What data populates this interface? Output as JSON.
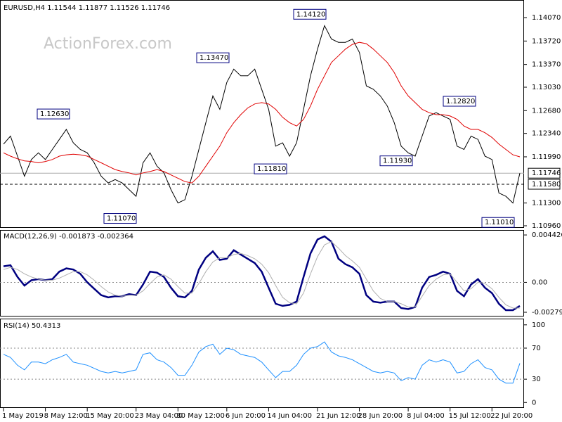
{
  "watermark": "ActionForex.com",
  "chart_data": [
    {
      "type": "line",
      "title": "EURUSD,H4  1.11544 1.11877 1.11526 1.11746",
      "x": [
        "1 May 2019",
        null,
        null,
        null,
        null,
        null,
        "8 May 12:00",
        null,
        null,
        null,
        null,
        null,
        "15 May 20:00",
        null,
        null,
        null,
        null,
        null,
        null,
        "23 May 04:00",
        null,
        null,
        null,
        null,
        null,
        "30 May 12:00",
        null,
        null,
        null,
        null,
        null,
        null,
        "6 Jun 20:00",
        null,
        null,
        null,
        null,
        null,
        "14 Jun 04:00",
        null,
        null,
        null,
        null,
        null,
        null,
        "21 Jun 12:00",
        null,
        null,
        null,
        null,
        null,
        "28 Jun 20:00",
        null,
        null,
        null,
        null,
        null,
        null,
        "8 Jul 04:00",
        null,
        null,
        null,
        null,
        null,
        "15 Jul 12:00",
        null,
        null,
        null,
        null,
        null,
        "22 Jul 20:00",
        null,
        null,
        null,
        null
      ],
      "series": [
        {
          "color": "#000000",
          "values": [
            1.1218,
            1.123,
            1.12,
            1.117,
            1.1195,
            1.1205,
            1.1195,
            1.121,
            1.1225,
            1.124,
            1.122,
            1.121,
            1.1205,
            1.119,
            1.117,
            1.116,
            1.1165,
            1.116,
            1.115,
            1.114,
            1.119,
            1.1205,
            1.1185,
            1.1175,
            1.115,
            1.113,
            1.1135,
            1.117,
            1.121,
            1.125,
            1.129,
            1.127,
            1.131,
            1.133,
            1.132,
            1.132,
            1.133,
            1.13,
            1.127,
            1.1215,
            1.122,
            1.12,
            1.122,
            1.127,
            1.132,
            1.136,
            1.1395,
            1.1375,
            1.137,
            1.137,
            1.1375,
            1.1355,
            1.1305,
            1.13,
            1.129,
            1.1275,
            1.125,
            1.1215,
            1.1205,
            1.12,
            1.123,
            1.126,
            1.1265,
            1.126,
            1.1255,
            1.1215,
            1.121,
            1.123,
            1.1225,
            1.12,
            1.1195,
            1.1145,
            1.114,
            1.113,
            1.11746
          ]
        },
        {
          "color": "#e00000",
          "values": [
            1.1205,
            1.12,
            1.1196,
            1.1193,
            1.1192,
            1.119,
            1.1192,
            1.1195,
            1.12,
            1.1202,
            1.1203,
            1.1202,
            1.12,
            1.1195,
            1.119,
            1.1185,
            1.118,
            1.1177,
            1.1175,
            1.1172,
            1.1175,
            1.1177,
            1.118,
            1.1177,
            1.1172,
            1.1167,
            1.1162,
            1.116,
            1.117,
            1.1185,
            1.12,
            1.1215,
            1.1235,
            1.125,
            1.1262,
            1.1272,
            1.1278,
            1.128,
            1.1278,
            1.127,
            1.1258,
            1.125,
            1.1245,
            1.1255,
            1.1275,
            1.13,
            1.132,
            1.134,
            1.135,
            1.136,
            1.1367,
            1.137,
            1.1368,
            1.136,
            1.135,
            1.134,
            1.1325,
            1.1305,
            1.129,
            1.128,
            1.127,
            1.1265,
            1.1262,
            1.1262,
            1.126,
            1.1255,
            1.1245,
            1.124,
            1.124,
            1.1235,
            1.1228,
            1.1218,
            1.121,
            1.1202,
            1.1199
          ]
        }
      ],
      "ylim": [
        1.10939,
        1.14333
      ],
      "yticks": [
        {
          "value": 1.1407,
          "label": "1.14070"
        },
        {
          "value": 1.1372,
          "label": "1.13720"
        },
        {
          "value": 1.1337,
          "label": "1.13370"
        },
        {
          "value": 1.1303,
          "label": "1.13030"
        },
        {
          "value": 1.1268,
          "label": "1.12680"
        },
        {
          "value": 1.1234,
          "label": "1.12340"
        },
        {
          "value": 1.1199,
          "label": "1.11990"
        },
        {
          "value": 1.113,
          "label": "1.11300"
        },
        {
          "value": 1.1096,
          "label": "1.10960"
        }
      ],
      "markers": [
        1.11746,
        {
          "value": 1.1158,
          "label": "1.11580"
        }
      ],
      "annotations": [
        {
          "value": 1.1263,
          "label": "1.12630"
        },
        {
          "value": 1.1347,
          "label": "1.13470"
        },
        {
          "value": 1.1412,
          "label": "1.14120"
        },
        {
          "value": 1.1181,
          "label": "1.11810"
        },
        {
          "value": 1.1193,
          "label": "1.11930"
        },
        {
          "value": 1.1282,
          "label": "1.12820"
        },
        {
          "value": 1.1107,
          "label": "1.11070"
        },
        {
          "value": 1.1101,
          "label": "1.11010"
        }
      ]
    },
    {
      "type": "line",
      "title": "MACD(12,26,9) -0.001873 -0.002364",
      "series": [
        {
          "color": "#000080",
          "values": [
            0.0015,
            0.0016,
            0.0005,
            -0.0003,
            0.0002,
            0.0003,
            0.0002,
            0.0003,
            0.001,
            0.0013,
            0.0012,
            0.0008,
            0.0,
            -0.0006,
            -0.0012,
            -0.0014,
            -0.0013,
            -0.0013,
            -0.0011,
            -0.0012,
            -0.0002,
            0.001,
            0.0009,
            0.0005,
            -0.0005,
            -0.0013,
            -0.0014,
            -0.0008,
            0.0012,
            0.0023,
            0.0029,
            0.0021,
            0.0022,
            0.003,
            0.0026,
            0.0022,
            0.0018,
            0.001,
            -0.0005,
            -0.002,
            -0.0022,
            -0.0021,
            -0.0018,
            0.0005,
            0.0027,
            0.004,
            0.0043,
            0.0038,
            0.0022,
            0.0017,
            0.0014,
            0.0008,
            -0.0012,
            -0.0018,
            -0.0019,
            -0.0018,
            -0.0018,
            -0.0024,
            -0.0025,
            -0.0023,
            -0.0005,
            0.0005,
            0.0007,
            0.001,
            0.0008,
            -0.0008,
            -0.0013,
            -0.0002,
            0.0003,
            -0.0005,
            -0.001,
            -0.002,
            -0.0026,
            -0.0026,
            -0.0022
          ]
        },
        {
          "color": "#b0b0b0",
          "values": [
            0.0012,
            0.0014,
            0.0012,
            0.0008,
            0.0005,
            0.0003,
            0.0002,
            0.0002,
            0.0004,
            0.0007,
            0.001,
            0.001,
            0.0007,
            0.0002,
            -0.0004,
            -0.0009,
            -0.0012,
            -0.0013,
            -0.0012,
            -0.0012,
            -0.0008,
            -0.0001,
            0.0005,
            0.0007,
            0.0003,
            -0.0004,
            -0.001,
            -0.001,
            -0.0001,
            0.001,
            0.0019,
            0.0023,
            0.0023,
            0.0026,
            0.0027,
            0.0025,
            0.0022,
            0.0017,
            0.0009,
            -0.0003,
            -0.0014,
            -0.0019,
            -0.002,
            -0.001,
            0.0008,
            0.0024,
            0.0035,
            0.0038,
            0.0032,
            0.0025,
            0.002,
            0.0014,
            0.0003,
            -0.0008,
            -0.0015,
            -0.0018,
            -0.0018,
            -0.002,
            -0.0023,
            -0.0023,
            -0.0013,
            -0.0003,
            0.0003,
            0.0007,
            0.0008,
            0.0,
            -0.0008,
            -0.0006,
            0.0,
            -0.0001,
            -0.0006,
            -0.0014,
            -0.0021,
            -0.0024,
            -0.0024
          ]
        }
      ],
      "ylim": [
        -0.00319,
        0.00489
      ],
      "yticks": [
        0.004426,
        {
          "value": 0,
          "label": "0.00"
        },
        -0.002795
      ],
      "levels": [
        0
      ]
    },
    {
      "type": "line",
      "title": "RSI(14) 50.4313",
      "series": [
        {
          "color": "#1e90ff",
          "values": [
            62,
            58,
            48,
            42,
            52,
            52,
            50,
            55,
            58,
            62,
            52,
            50,
            48,
            44,
            40,
            38,
            40,
            38,
            40,
            42,
            62,
            64,
            55,
            52,
            45,
            35,
            35,
            48,
            65,
            72,
            75,
            62,
            70,
            68,
            62,
            60,
            58,
            52,
            42,
            32,
            40,
            40,
            48,
            62,
            70,
            72,
            78,
            65,
            60,
            58,
            55,
            50,
            45,
            40,
            38,
            40,
            38,
            28,
            32,
            30,
            48,
            55,
            52,
            55,
            52,
            38,
            40,
            50,
            55,
            45,
            42,
            30,
            25,
            25,
            50.4313
          ]
        }
      ],
      "ylim": [
        -7,
        108
      ],
      "yticks": [
        100,
        70,
        30,
        0
      ],
      "levels": [
        70,
        30
      ]
    }
  ]
}
